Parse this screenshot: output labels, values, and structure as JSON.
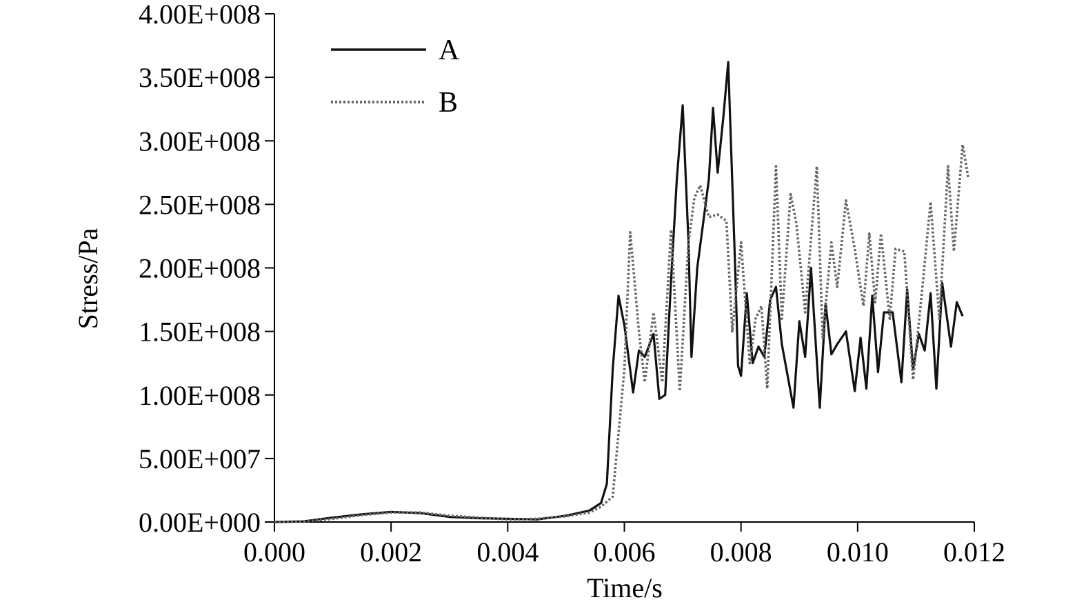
{
  "chart_data": {
    "type": "line",
    "title": "",
    "xlabel": "Time/s",
    "ylabel": "Stress/Pa",
    "xlim": [
      0,
      0.012
    ],
    "ylim": [
      0,
      400000000
    ],
    "x_ticks": [
      0,
      0.002,
      0.004,
      0.006,
      0.008,
      0.01,
      0.012
    ],
    "x_tick_labels": [
      "0.000",
      "0.002",
      "0.004",
      "0.006",
      "0.008",
      "0.010",
      "0.012"
    ],
    "y_ticks": [
      0,
      50000000,
      100000000,
      150000000,
      200000000,
      250000000,
      300000000,
      350000000,
      400000000
    ],
    "y_tick_labels": [
      "0.00E+000",
      "5.00E+007",
      "1.00E+008",
      "1.50E+008",
      "2.00E+008",
      "2.50E+008",
      "3.00E+008",
      "3.50E+008",
      "4.00E+008"
    ],
    "grid": false,
    "legend_position": "top-left",
    "series": [
      {
        "name": "A",
        "style": "solid",
        "color": "#111111",
        "points": [
          [
            0.0,
            0
          ],
          [
            0.0005,
            500000
          ],
          [
            0.001,
            3500000
          ],
          [
            0.0015,
            6000000
          ],
          [
            0.002,
            8000000
          ],
          [
            0.0025,
            7000000
          ],
          [
            0.003,
            4000000
          ],
          [
            0.0035,
            3000000
          ],
          [
            0.004,
            2500000
          ],
          [
            0.0045,
            2000000
          ],
          [
            0.005,
            5000000
          ],
          [
            0.0054,
            9000000
          ],
          [
            0.0056,
            15000000
          ],
          [
            0.0057,
            30000000
          ],
          [
            0.0058,
            120000000
          ],
          [
            0.0059,
            178000000
          ],
          [
            0.006,
            155000000
          ],
          [
            0.00615,
            102000000
          ],
          [
            0.00625,
            135000000
          ],
          [
            0.00635,
            130000000
          ],
          [
            0.0065,
            148000000
          ],
          [
            0.0066,
            97000000
          ],
          [
            0.0067,
            100000000
          ],
          [
            0.0068,
            190000000
          ],
          [
            0.0069,
            270000000
          ],
          [
            0.007,
            328000000
          ],
          [
            0.0071,
            220000000
          ],
          [
            0.00715,
            130000000
          ],
          [
            0.00725,
            200000000
          ],
          [
            0.00735,
            235000000
          ],
          [
            0.00745,
            270000000
          ],
          [
            0.00752,
            326000000
          ],
          [
            0.0076,
            275000000
          ],
          [
            0.0077,
            320000000
          ],
          [
            0.00778,
            362000000
          ],
          [
            0.0079,
            200000000
          ],
          [
            0.00795,
            123000000
          ],
          [
            0.008,
            115000000
          ],
          [
            0.0081,
            180000000
          ],
          [
            0.0082,
            125000000
          ],
          [
            0.0083,
            138000000
          ],
          [
            0.0084,
            130000000
          ],
          [
            0.0085,
            175000000
          ],
          [
            0.0086,
            185000000
          ],
          [
            0.0087,
            140000000
          ],
          [
            0.0089,
            90000000
          ],
          [
            0.009,
            158000000
          ],
          [
            0.0091,
            130000000
          ],
          [
            0.0092,
            200000000
          ],
          [
            0.00935,
            90000000
          ],
          [
            0.00945,
            172000000
          ],
          [
            0.00955,
            132000000
          ],
          [
            0.00965,
            140000000
          ],
          [
            0.0098,
            150000000
          ],
          [
            0.00995,
            103000000
          ],
          [
            0.01005,
            145000000
          ],
          [
            0.01015,
            105000000
          ],
          [
            0.01025,
            178000000
          ],
          [
            0.01035,
            118000000
          ],
          [
            0.01045,
            165000000
          ],
          [
            0.0106,
            165000000
          ],
          [
            0.01075,
            110000000
          ],
          [
            0.01085,
            183000000
          ],
          [
            0.01095,
            120000000
          ],
          [
            0.01105,
            148000000
          ],
          [
            0.01115,
            135000000
          ],
          [
            0.01125,
            180000000
          ],
          [
            0.01135,
            105000000
          ],
          [
            0.01145,
            188000000
          ],
          [
            0.0116,
            138000000
          ],
          [
            0.0117,
            173000000
          ],
          [
            0.0118,
            162000000
          ]
        ]
      },
      {
        "name": "B",
        "style": "dotted",
        "color": "#666666",
        "points": [
          [
            0.0,
            0
          ],
          [
            0.0005,
            300000
          ],
          [
            0.001,
            2500000
          ],
          [
            0.0015,
            5500000
          ],
          [
            0.002,
            7500000
          ],
          [
            0.0025,
            7500000
          ],
          [
            0.003,
            5000000
          ],
          [
            0.0035,
            3500000
          ],
          [
            0.004,
            2000000
          ],
          [
            0.0045,
            2500000
          ],
          [
            0.005,
            4500000
          ],
          [
            0.0054,
            7500000
          ],
          [
            0.0056,
            12000000
          ],
          [
            0.0058,
            20000000
          ],
          [
            0.006,
            120000000
          ],
          [
            0.0061,
            228000000
          ],
          [
            0.00625,
            150000000
          ],
          [
            0.00635,
            110000000
          ],
          [
            0.0065,
            165000000
          ],
          [
            0.00665,
            110000000
          ],
          [
            0.0068,
            230000000
          ],
          [
            0.00695,
            103000000
          ],
          [
            0.0071,
            220000000
          ],
          [
            0.0072,
            255000000
          ],
          [
            0.0073,
            265000000
          ],
          [
            0.00745,
            240000000
          ],
          [
            0.0076,
            242000000
          ],
          [
            0.00775,
            237000000
          ],
          [
            0.00785,
            150000000
          ],
          [
            0.008,
            220000000
          ],
          [
            0.00815,
            125000000
          ],
          [
            0.00825,
            160000000
          ],
          [
            0.00835,
            170000000
          ],
          [
            0.00845,
            105000000
          ],
          [
            0.0086,
            280000000
          ],
          [
            0.0087,
            160000000
          ],
          [
            0.00885,
            258000000
          ],
          [
            0.00895,
            235000000
          ],
          [
            0.0091,
            165000000
          ],
          [
            0.0093,
            280000000
          ],
          [
            0.0094,
            145000000
          ],
          [
            0.00955,
            220000000
          ],
          [
            0.00965,
            185000000
          ],
          [
            0.0098,
            253000000
          ],
          [
            0.00995,
            215000000
          ],
          [
            0.0101,
            170000000
          ],
          [
            0.0102,
            227000000
          ],
          [
            0.0103,
            173000000
          ],
          [
            0.0104,
            227000000
          ],
          [
            0.01055,
            160000000
          ],
          [
            0.01065,
            215000000
          ],
          [
            0.0108,
            213000000
          ],
          [
            0.01095,
            112000000
          ],
          [
            0.0111,
            180000000
          ],
          [
            0.01125,
            252000000
          ],
          [
            0.0114,
            160000000
          ],
          [
            0.01155,
            280000000
          ],
          [
            0.01165,
            213000000
          ],
          [
            0.0118,
            297000000
          ],
          [
            0.0119,
            270000000
          ]
        ]
      }
    ]
  }
}
